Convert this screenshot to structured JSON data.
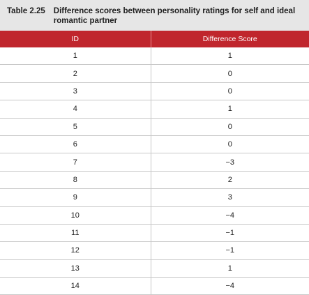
{
  "table": {
    "label": "Table 2.25",
    "title": "Difference scores between personality ratings for self and ideal romantic partner",
    "headers": [
      "ID",
      "Difference Score"
    ],
    "rows": [
      {
        "id": "1",
        "score": "1"
      },
      {
        "id": "2",
        "score": "0"
      },
      {
        "id": "3",
        "score": "0"
      },
      {
        "id": "4",
        "score": "1"
      },
      {
        "id": "5",
        "score": "0"
      },
      {
        "id": "6",
        "score": "0"
      },
      {
        "id": "7",
        "score": "−3"
      },
      {
        "id": "8",
        "score": "2"
      },
      {
        "id": "9",
        "score": "3"
      },
      {
        "id": "10",
        "score": "−4"
      },
      {
        "id": "11",
        "score": "−1"
      },
      {
        "id": "12",
        "score": "−1"
      },
      {
        "id": "13",
        "score": "1"
      },
      {
        "id": "14",
        "score": "−4"
      }
    ]
  },
  "colors": {
    "header_bg": "#c0262d",
    "caption_bg": "#e6e6e6"
  }
}
